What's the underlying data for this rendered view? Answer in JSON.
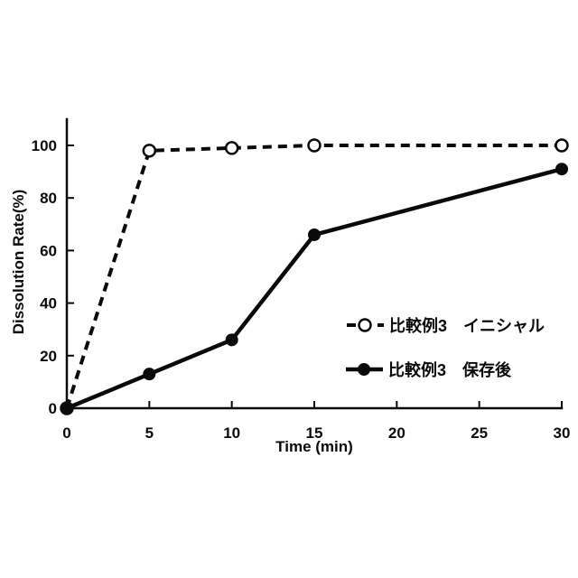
{
  "figure": {
    "background_color": "#ffffff",
    "ink_color": "#0a0a0a"
  },
  "chart_data": {
    "type": "line",
    "title": "",
    "xlabel": "Time (min)",
    "ylabel": "Dissolution Rate(%)",
    "xlim": [
      0,
      30
    ],
    "ylim": [
      0,
      100
    ],
    "x_ticks": [
      0,
      5,
      10,
      15,
      20,
      25,
      30
    ],
    "y_ticks": [
      0,
      20,
      40,
      60,
      80,
      100
    ],
    "grid": false,
    "legend_position": "inside-right",
    "series": [
      {
        "name": "比較例3　イニシャル",
        "line_style": "dashed",
        "marker": "open-circle",
        "color": "#0a0a0a",
        "x": [
          0,
          5,
          10,
          15,
          30
        ],
        "values": [
          0,
          98,
          99,
          100,
          100
        ]
      },
      {
        "name": "比較例3　保存後",
        "line_style": "solid",
        "marker": "filled-circle",
        "color": "#0a0a0a",
        "x": [
          0,
          5,
          10,
          15,
          30
        ],
        "values": [
          0,
          13,
          26,
          66,
          91
        ]
      }
    ]
  }
}
